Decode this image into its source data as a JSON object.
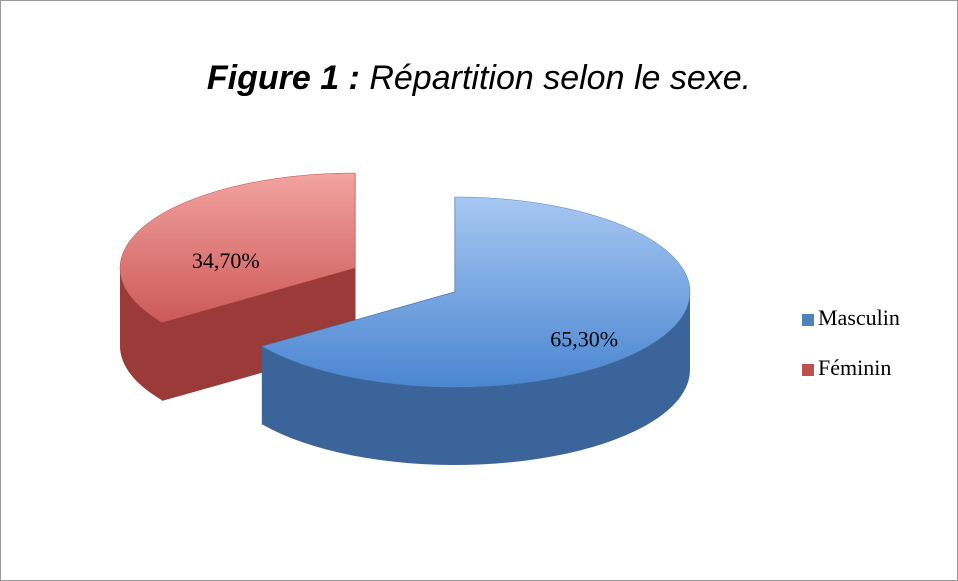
{
  "chart_data": {
    "type": "pie",
    "title_prefix": "Figure 1 :",
    "title": "Répartition selon le sexe.",
    "categories": [
      "Masculin",
      "Féminin"
    ],
    "values": [
      65.3,
      34.7
    ],
    "value_labels": [
      "65,30%",
      "34,70%"
    ],
    "colors": [
      "#4f81bd",
      "#c0504d"
    ],
    "legend": "right"
  }
}
